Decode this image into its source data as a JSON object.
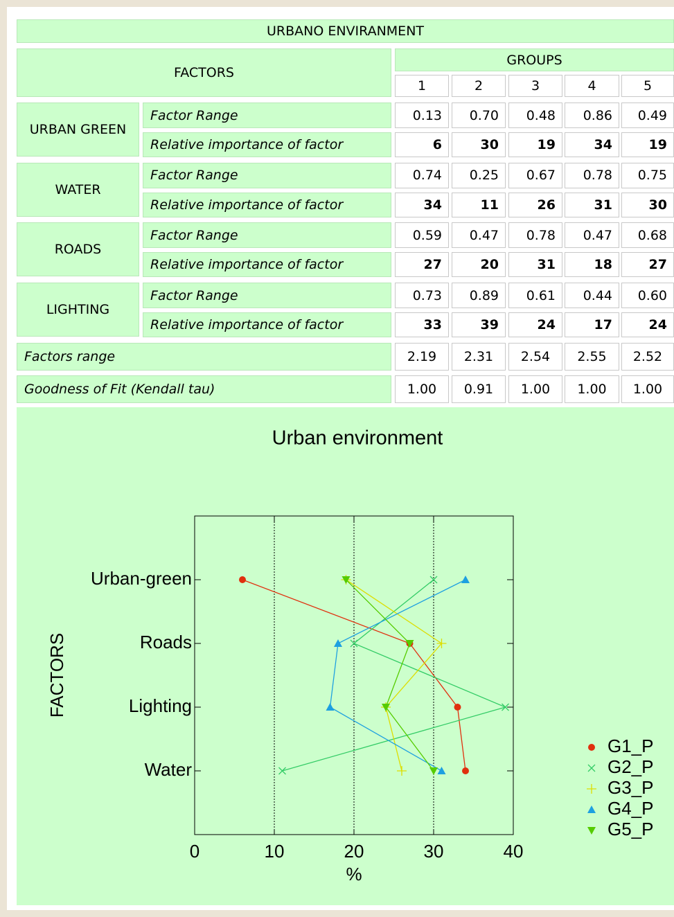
{
  "table": {
    "title": "URBANO ENVIRANMENT",
    "factors_header": "FACTORS",
    "groups_header": "GROUPS",
    "groups": [
      "1",
      "2",
      "3",
      "4",
      "5"
    ],
    "factors": [
      {
        "name": "URBAN GREEN",
        "range_label": "Factor Range",
        "range": [
          "0.13",
          "0.70",
          "0.48",
          "0.86",
          "0.49"
        ],
        "importance_label": "Relative importance of factor",
        "importance": [
          "6",
          "30",
          "19",
          "34",
          "19"
        ]
      },
      {
        "name": "WATER",
        "range_label": "Factor Range",
        "range": [
          "0.74",
          "0.25",
          "0.67",
          "0.78",
          "0.75"
        ],
        "importance_label": "Relative importance of factor",
        "importance": [
          "34",
          "11",
          "26",
          "31",
          "30"
        ]
      },
      {
        "name": "ROADS",
        "range_label": "Factor Range",
        "range": [
          "0.59",
          "0.47",
          "0.78",
          "0.47",
          "0.68"
        ],
        "importance_label": "Relative importance of factor",
        "importance": [
          "27",
          "20",
          "31",
          "18",
          "27"
        ]
      },
      {
        "name": "LIGHTING",
        "range_label": "Factor Range",
        "range": [
          "0.73",
          "0.89",
          "0.61",
          "0.44",
          "0.60"
        ],
        "importance_label": "Relative importance of factor",
        "importance": [
          "33",
          "39",
          "24",
          "17",
          "24"
        ]
      }
    ],
    "summary": [
      {
        "label": "Factors range",
        "values": [
          "2.19",
          "2.31",
          "2.54",
          "2.55",
          "2.52"
        ]
      },
      {
        "label": "Goodness of Fit (Kendall tau)",
        "values": [
          "1.00",
          "0.91",
          "1.00",
          "1.00",
          "1.00"
        ]
      }
    ]
  },
  "chart_data": {
    "type": "line",
    "title": "Urban environment",
    "xlabel": "%",
    "ylabel": "FACTORS",
    "categories": [
      "Urban-green",
      "Roads",
      "Lighting",
      "Water"
    ],
    "xlim": [
      0,
      40
    ],
    "xticks": [
      0,
      10,
      20,
      30,
      40
    ],
    "grid": true,
    "legend": "lower right",
    "series": [
      {
        "name": "G1_P",
        "color": "#e0300e",
        "marker": "circle",
        "values": [
          6,
          27,
          33,
          34
        ]
      },
      {
        "name": "G2_P",
        "color": "#33cc66",
        "marker": "x",
        "values": [
          30,
          20,
          39,
          11
        ]
      },
      {
        "name": "G3_P",
        "color": "#dddd00",
        "marker": "plus",
        "values": [
          19,
          31,
          24,
          26
        ]
      },
      {
        "name": "G4_P",
        "color": "#1ea0e0",
        "marker": "triangle-up",
        "values": [
          34,
          18,
          17,
          31
        ]
      },
      {
        "name": "G5_P",
        "color": "#55cc00",
        "marker": "triangle-down",
        "values": [
          19,
          27,
          24,
          30
        ]
      }
    ]
  }
}
